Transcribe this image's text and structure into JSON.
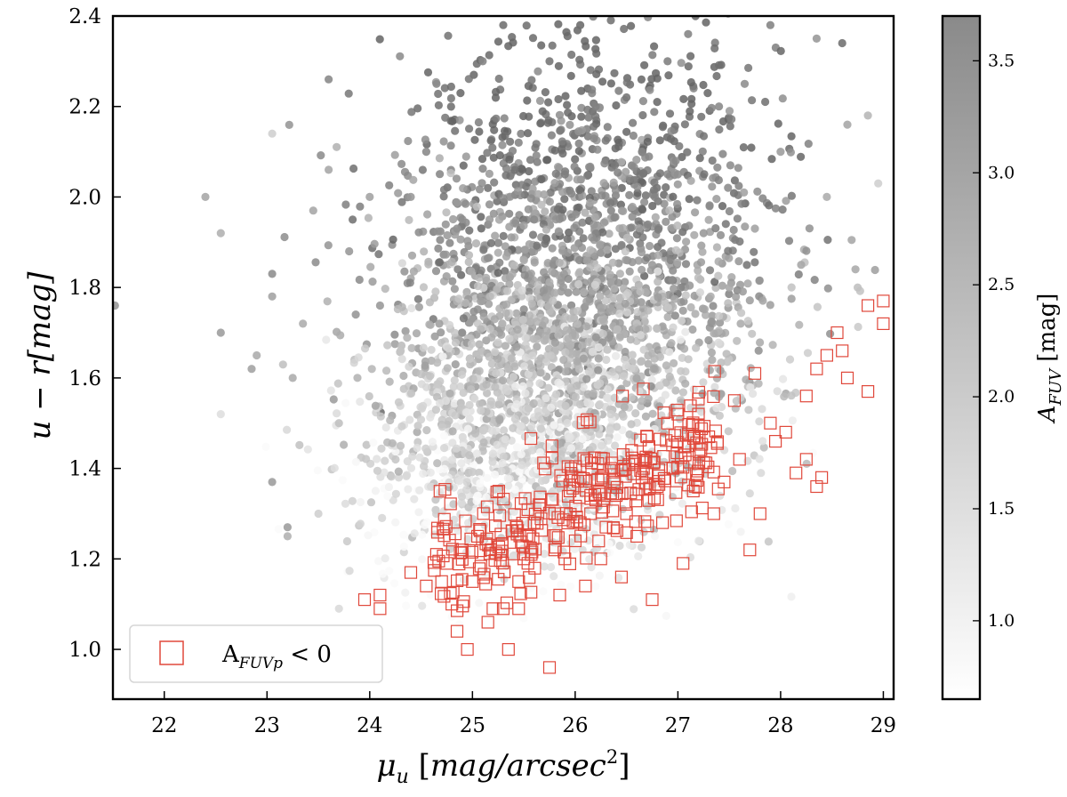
{
  "chart_data": {
    "type": "scatter",
    "title": "",
    "xlabel": "μu [mag/arcsec2]",
    "xlabel_parts": {
      "base": "μ",
      "sub": "u",
      "bracket_open": " [",
      "unit": "mag/arcsec",
      "sup": "2",
      "bracket_close": "]"
    },
    "ylabel": "u − r[mag]",
    "xlim": [
      21.5,
      29.1
    ],
    "ylim": [
      0.89,
      2.4
    ],
    "xticks": [
      22,
      23,
      24,
      25,
      26,
      27,
      28,
      29
    ],
    "xtick_labels": [
      "22",
      "23",
      "24",
      "25",
      "26",
      "27",
      "28",
      "29"
    ],
    "yticks": [
      1.0,
      1.2,
      1.4,
      1.6,
      1.8,
      2.0,
      2.2,
      2.4
    ],
    "ytick_labels": [
      "1.0",
      "1.2",
      "1.4",
      "1.6",
      "1.8",
      "2.0",
      "2.2",
      "2.4"
    ],
    "grid": false,
    "colorbar": {
      "label": "AFUV [mag]",
      "label_parts": {
        "base": "A",
        "sub": "FUV",
        "unit": " [mag]"
      },
      "range": [
        0.65,
        3.7
      ],
      "ticks": [
        1.0,
        1.5,
        2.0,
        2.5,
        3.0,
        3.5
      ],
      "tick_labels": [
        "1.0",
        "1.5",
        "2.0",
        "2.5",
        "3.0",
        "3.5"
      ],
      "cmap": "Greys"
    },
    "series": [
      {
        "name": "",
        "marker": "circle",
        "color_by": "AFUV",
        "points": [
          [
            21.52,
            1.76,
            2.6
          ],
          [
            22.4,
            2.0,
            2.3
          ],
          [
            22.55,
            1.92,
            2.1
          ],
          [
            22.55,
            1.7,
            2.5
          ],
          [
            22.55,
            1.52,
            1.2
          ],
          [
            22.85,
            1.62,
            2.4
          ],
          [
            22.9,
            1.65,
            2.2
          ],
          [
            23.05,
            2.14,
            1.5
          ],
          [
            23.05,
            1.83,
            2.8
          ],
          [
            23.05,
            1.78,
            2.4
          ],
          [
            23.05,
            1.37,
            2.5
          ],
          [
            23.2,
            1.27,
            2.5
          ],
          [
            23.2,
            1.25,
            2.1
          ],
          [
            23.25,
            1.6,
            2.2
          ],
          [
            23.35,
            1.72,
            2.2
          ],
          [
            23.45,
            1.97,
            2.3
          ],
          [
            23.6,
            2.26,
            2.9
          ],
          [
            23.6,
            2.06,
            2.3
          ],
          [
            23.5,
            1.3,
            1.5
          ],
          [
            23.7,
            1.5,
            1.8
          ],
          [
            23.7,
            1.09,
            1.3
          ],
          [
            23.8,
            1.88,
            2.6
          ],
          [
            24.0,
            2.0,
            2.4
          ],
          [
            24.1,
            1.76,
            2.6
          ],
          [
            24.3,
            1.45,
            1.8
          ],
          [
            24.4,
            2.0,
            2.6
          ],
          [
            24.55,
            2.1,
            2.9
          ],
          [
            24.65,
            2.25,
            2.9
          ],
          [
            24.85,
            1.93,
            2.8
          ],
          [
            24.9,
            1.7,
            2.7
          ],
          [
            25.1,
            2.3,
            3.0
          ],
          [
            25.3,
            2.38,
            3.4
          ],
          [
            25.45,
            2.12,
            3.0
          ],
          [
            25.6,
            1.95,
            2.9
          ],
          [
            25.75,
            2.3,
            3.3
          ],
          [
            25.9,
            2.05,
            3.2
          ],
          [
            26.05,
            2.38,
            3.5
          ],
          [
            26.2,
            2.2,
            3.1
          ],
          [
            26.35,
            1.97,
            3.0
          ],
          [
            26.5,
            2.22,
            3.3
          ],
          [
            26.65,
            2.1,
            3.0
          ],
          [
            26.75,
            1.85,
            2.6
          ],
          [
            26.9,
            2.3,
            3.1
          ],
          [
            27.0,
            2.05,
            2.8
          ],
          [
            27.1,
            2.36,
            3.0
          ],
          [
            27.25,
            1.92,
            2.6
          ],
          [
            27.4,
            2.2,
            2.9
          ],
          [
            27.5,
            1.8,
            2.3
          ],
          [
            27.65,
            2.25,
            2.8
          ],
          [
            27.75,
            1.93,
            2.4
          ],
          [
            27.9,
            2.38,
            3.0
          ],
          [
            28.0,
            2.1,
            2.5
          ],
          [
            28.2,
            1.85,
            2.3
          ],
          [
            28.35,
            2.35,
            2.6
          ],
          [
            28.45,
            2.0,
            2.2
          ],
          [
            28.6,
            2.34,
            3.4
          ],
          [
            28.65,
            2.16,
            2.3
          ],
          [
            28.75,
            1.8,
            1.8
          ],
          [
            28.85,
            2.18,
            2.0
          ],
          [
            28.95,
            2.03,
            1.5
          ]
        ],
        "density_regions": [
          {
            "x_center": 26.1,
            "y_center": 1.92,
            "x_spread": 0.95,
            "y_spread": 0.2,
            "AFUV_mean": 2.9
          },
          {
            "x_center": 25.8,
            "y_center": 1.6,
            "x_spread": 0.9,
            "y_spread": 0.16,
            "AFUV_mean": 1.8
          },
          {
            "x_center": 25.3,
            "y_center": 1.38,
            "x_spread": 0.7,
            "y_spread": 0.12,
            "AFUV_mean": 1.2
          }
        ]
      },
      {
        "name": "AFUVp < 0",
        "name_parts": {
          "base": "A",
          "sub": "FUVp",
          "rest": " < 0"
        },
        "marker": "open-square",
        "color": "#e0483b",
        "points": [
          [
            23.95,
            1.11
          ],
          [
            24.1,
            1.12
          ],
          [
            24.1,
            1.09
          ],
          [
            24.4,
            1.17
          ],
          [
            24.55,
            1.14
          ],
          [
            24.65,
            1.21
          ],
          [
            24.75,
            1.19
          ],
          [
            24.8,
            1.1
          ],
          [
            24.85,
            1.04
          ],
          [
            24.95,
            1.0
          ],
          [
            24.7,
            1.15
          ],
          [
            24.9,
            1.22
          ],
          [
            25.0,
            1.15
          ],
          [
            25.05,
            1.25
          ],
          [
            25.15,
            1.06
          ],
          [
            25.2,
            1.09
          ],
          [
            25.3,
            1.09
          ],
          [
            25.35,
            1.0
          ],
          [
            25.45,
            1.09
          ],
          [
            25.45,
            1.15
          ],
          [
            25.5,
            1.2
          ],
          [
            25.55,
            1.25
          ],
          [
            25.6,
            1.28
          ],
          [
            25.65,
            1.32
          ],
          [
            25.75,
            0.96
          ],
          [
            25.8,
            1.22
          ],
          [
            25.8,
            1.3
          ],
          [
            25.85,
            1.12
          ],
          [
            25.9,
            1.2
          ],
          [
            25.95,
            1.35
          ],
          [
            26.0,
            1.24
          ],
          [
            26.05,
            1.28
          ],
          [
            26.05,
            1.38
          ],
          [
            26.1,
            1.14
          ],
          [
            26.15,
            1.3
          ],
          [
            26.2,
            1.33
          ],
          [
            26.25,
            1.2
          ],
          [
            26.3,
            1.27
          ],
          [
            26.35,
            1.4
          ],
          [
            26.4,
            1.34
          ],
          [
            26.45,
            1.16
          ],
          [
            26.5,
            1.3
          ],
          [
            26.55,
            1.44
          ],
          [
            26.6,
            1.25
          ],
          [
            26.65,
            1.38
          ],
          [
            26.7,
            1.47
          ],
          [
            26.75,
            1.11
          ],
          [
            26.8,
            1.36
          ],
          [
            26.85,
            1.28
          ],
          [
            26.9,
            1.5
          ],
          [
            26.95,
            1.4
          ],
          [
            27.0,
            1.52
          ],
          [
            27.05,
            1.19
          ],
          [
            27.1,
            1.45
          ],
          [
            27.15,
            1.35
          ],
          [
            27.2,
            1.52
          ],
          [
            27.3,
            1.47
          ],
          [
            27.35,
            1.3
          ],
          [
            27.45,
            1.37
          ],
          [
            27.55,
            1.55
          ],
          [
            27.6,
            1.42
          ],
          [
            27.7,
            1.22
          ],
          [
            27.75,
            1.61
          ],
          [
            27.8,
            1.3
          ],
          [
            27.9,
            1.5
          ],
          [
            27.95,
            1.46
          ],
          [
            28.05,
            1.48
          ],
          [
            28.15,
            1.39
          ],
          [
            28.25,
            1.42
          ],
          [
            28.25,
            1.56
          ],
          [
            28.35,
            1.36
          ],
          [
            28.35,
            1.62
          ],
          [
            28.4,
            1.38
          ],
          [
            28.45,
            1.65
          ],
          [
            28.55,
            1.7
          ],
          [
            28.6,
            1.66
          ],
          [
            28.65,
            1.6
          ],
          [
            28.85,
            1.57
          ],
          [
            28.85,
            1.76
          ],
          [
            29.0,
            1.77
          ],
          [
            29.0,
            1.72
          ]
        ],
        "band": {
          "x_from": 24.6,
          "x_to": 27.4,
          "y_at_from": 1.2,
          "y_at_to": 1.5,
          "spread": 0.06
        }
      }
    ],
    "legend_placement": "lower-left"
  }
}
